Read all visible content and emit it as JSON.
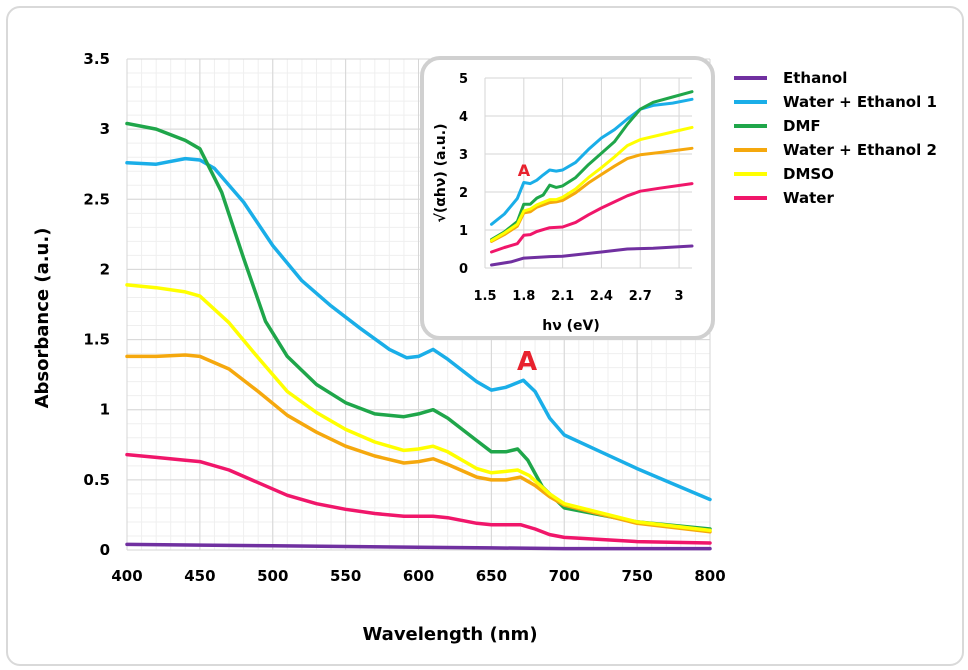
{
  "chart_data": [
    {
      "type": "line",
      "xlabel": "Wavelength (nm)",
      "ylabel": "Absorbance (a.u.)",
      "xlim": [
        400,
        800
      ],
      "ylim": [
        0,
        3.5
      ],
      "xticks": [
        "400",
        "450",
        "500",
        "550",
        "600",
        "650",
        "700",
        "750",
        "800"
      ],
      "yticks": [
        "0",
        "0.5",
        "1",
        "1.5",
        "2",
        "2.5",
        "3",
        "3.5"
      ],
      "grid": true,
      "legend_position": "right",
      "annotation": "A",
      "annotation_color": "#e8212d",
      "series": [
        {
          "name": "Ethanol",
          "color": "#7030a0",
          "points": [
            [
              400,
              0.04
            ],
            [
              450,
              0.035
            ],
            [
              500,
              0.03
            ],
            [
              550,
              0.025
            ],
            [
              600,
              0.02
            ],
            [
              650,
              0.015
            ],
            [
              700,
              0.01
            ],
            [
              750,
              0.01
            ],
            [
              800,
              0.01
            ]
          ]
        },
        {
          "name": "Water + Ethanol 1",
          "color": "#1aaee8",
          "points": [
            [
              400,
              2.76
            ],
            [
              420,
              2.75
            ],
            [
              440,
              2.79
            ],
            [
              450,
              2.78
            ],
            [
              460,
              2.72
            ],
            [
              480,
              2.48
            ],
            [
              500,
              2.17
            ],
            [
              520,
              1.92
            ],
            [
              540,
              1.74
            ],
            [
              560,
              1.58
            ],
            [
              580,
              1.43
            ],
            [
              592,
              1.37
            ],
            [
              600,
              1.38
            ],
            [
              610,
              1.43
            ],
            [
              620,
              1.36
            ],
            [
              640,
              1.2
            ],
            [
              650,
              1.14
            ],
            [
              660,
              1.16
            ],
            [
              672,
              1.21
            ],
            [
              680,
              1.13
            ],
            [
              690,
              0.94
            ],
            [
              700,
              0.82
            ],
            [
              725,
              0.7
            ],
            [
              750,
              0.58
            ],
            [
              775,
              0.47
            ],
            [
              800,
              0.36
            ]
          ]
        },
        {
          "name": "DMF",
          "color": "#1fa64a",
          "points": [
            [
              400,
              3.04
            ],
            [
              420,
              3.0
            ],
            [
              440,
              2.92
            ],
            [
              450,
              2.86
            ],
            [
              465,
              2.55
            ],
            [
              480,
              2.08
            ],
            [
              495,
              1.63
            ],
            [
              510,
              1.38
            ],
            [
              530,
              1.18
            ],
            [
              550,
              1.05
            ],
            [
              570,
              0.97
            ],
            [
              590,
              0.95
            ],
            [
              600,
              0.97
            ],
            [
              610,
              1.0
            ],
            [
              620,
              0.94
            ],
            [
              640,
              0.78
            ],
            [
              650,
              0.7
            ],
            [
              660,
              0.7
            ],
            [
              668,
              0.72
            ],
            [
              675,
              0.64
            ],
            [
              685,
              0.45
            ],
            [
              700,
              0.3
            ],
            [
              750,
              0.2
            ],
            [
              800,
              0.15
            ]
          ]
        },
        {
          "name": "Water + Ethanol 2",
          "color": "#f5a80d",
          "points": [
            [
              400,
              1.38
            ],
            [
              420,
              1.38
            ],
            [
              440,
              1.39
            ],
            [
              450,
              1.38
            ],
            [
              470,
              1.29
            ],
            [
              490,
              1.13
            ],
            [
              510,
              0.96
            ],
            [
              530,
              0.84
            ],
            [
              550,
              0.74
            ],
            [
              570,
              0.67
            ],
            [
              590,
              0.62
            ],
            [
              600,
              0.63
            ],
            [
              610,
              0.65
            ],
            [
              620,
              0.61
            ],
            [
              640,
              0.52
            ],
            [
              650,
              0.5
            ],
            [
              660,
              0.5
            ],
            [
              670,
              0.52
            ],
            [
              680,
              0.46
            ],
            [
              690,
              0.38
            ],
            [
              700,
              0.32
            ],
            [
              750,
              0.19
            ],
            [
              800,
              0.13
            ]
          ]
        },
        {
          "name": "DMSO",
          "color": "#ffff00",
          "points": [
            [
              400,
              1.89
            ],
            [
              420,
              1.87
            ],
            [
              440,
              1.84
            ],
            [
              450,
              1.81
            ],
            [
              470,
              1.62
            ],
            [
              490,
              1.37
            ],
            [
              510,
              1.13
            ],
            [
              530,
              0.98
            ],
            [
              550,
              0.86
            ],
            [
              570,
              0.77
            ],
            [
              590,
              0.71
            ],
            [
              600,
              0.72
            ],
            [
              610,
              0.74
            ],
            [
              620,
              0.7
            ],
            [
              640,
              0.58
            ],
            [
              650,
              0.55
            ],
            [
              660,
              0.56
            ],
            [
              668,
              0.57
            ],
            [
              676,
              0.53
            ],
            [
              690,
              0.4
            ],
            [
              700,
              0.33
            ],
            [
              750,
              0.2
            ],
            [
              800,
              0.14
            ]
          ]
        },
        {
          "name": "Water",
          "color": "#f0166a",
          "points": [
            [
              400,
              0.68
            ],
            [
              420,
              0.66
            ],
            [
              440,
              0.64
            ],
            [
              450,
              0.63
            ],
            [
              470,
              0.57
            ],
            [
              490,
              0.48
            ],
            [
              510,
              0.39
            ],
            [
              530,
              0.33
            ],
            [
              550,
              0.29
            ],
            [
              570,
              0.26
            ],
            [
              590,
              0.24
            ],
            [
              600,
              0.24
            ],
            [
              610,
              0.24
            ],
            [
              620,
              0.23
            ],
            [
              640,
              0.19
            ],
            [
              650,
              0.18
            ],
            [
              660,
              0.18
            ],
            [
              670,
              0.18
            ],
            [
              680,
              0.15
            ],
            [
              690,
              0.11
            ],
            [
              700,
              0.09
            ],
            [
              750,
              0.06
            ],
            [
              800,
              0.05
            ]
          ]
        }
      ]
    },
    {
      "type": "line",
      "xlabel": "hν (eV)",
      "ylabel": "√(αhν) (a.u.)",
      "xlim": [
        1.5,
        3.1
      ],
      "ylim": [
        0,
        5
      ],
      "xticks": [
        "1.5",
        "1.8",
        "2.1",
        "2.4",
        "2.7",
        "3"
      ],
      "yticks": [
        "0",
        "1",
        "2",
        "3",
        "4",
        "5"
      ],
      "annotation": "A",
      "annotation_color": "#e8212d",
      "series": [
        {
          "color": "#7030a0",
          "points": [
            [
              1.55,
              0.08
            ],
            [
              1.7,
              0.16
            ],
            [
              1.8,
              0.26
            ],
            [
              1.9,
              0.28
            ],
            [
              2.0,
              0.3
            ],
            [
              2.1,
              0.31
            ],
            [
              2.4,
              0.42
            ],
            [
              2.6,
              0.5
            ],
            [
              2.8,
              0.52
            ],
            [
              3.1,
              0.58
            ]
          ]
        },
        {
          "color": "#1aaee8",
          "points": [
            [
              1.55,
              1.15
            ],
            [
              1.65,
              1.42
            ],
            [
              1.75,
              1.83
            ],
            [
              1.8,
              2.25
            ],
            [
              1.85,
              2.22
            ],
            [
              1.9,
              2.31
            ],
            [
              1.95,
              2.45
            ],
            [
              2.0,
              2.58
            ],
            [
              2.05,
              2.55
            ],
            [
              2.1,
              2.58
            ],
            [
              2.2,
              2.78
            ],
            [
              2.3,
              3.12
            ],
            [
              2.4,
              3.42
            ],
            [
              2.5,
              3.64
            ],
            [
              2.6,
              3.92
            ],
            [
              2.7,
              4.18
            ],
            [
              2.8,
              4.28
            ],
            [
              2.95,
              4.34
            ],
            [
              3.1,
              4.44
            ]
          ]
        },
        {
          "color": "#1fa64a",
          "points": [
            [
              1.55,
              0.75
            ],
            [
              1.65,
              0.95
            ],
            [
              1.75,
              1.22
            ],
            [
              1.8,
              1.68
            ],
            [
              1.85,
              1.68
            ],
            [
              1.9,
              1.84
            ],
            [
              1.95,
              1.92
            ],
            [
              2.0,
              2.18
            ],
            [
              2.05,
              2.12
            ],
            [
              2.1,
              2.16
            ],
            [
              2.2,
              2.38
            ],
            [
              2.3,
              2.72
            ],
            [
              2.4,
              3.02
            ],
            [
              2.5,
              3.32
            ],
            [
              2.6,
              3.78
            ],
            [
              2.7,
              4.18
            ],
            [
              2.8,
              4.36
            ],
            [
              2.95,
              4.5
            ],
            [
              3.1,
              4.64
            ]
          ]
        },
        {
          "color": "#f5a80d",
          "points": [
            [
              1.55,
              0.7
            ],
            [
              1.65,
              0.88
            ],
            [
              1.75,
              1.1
            ],
            [
              1.8,
              1.45
            ],
            [
              1.85,
              1.48
            ],
            [
              1.9,
              1.6
            ],
            [
              2.0,
              1.72
            ],
            [
              2.05,
              1.74
            ],
            [
              2.1,
              1.78
            ],
            [
              2.2,
              1.98
            ],
            [
              2.3,
              2.24
            ],
            [
              2.4,
              2.46
            ],
            [
              2.5,
              2.68
            ],
            [
              2.6,
              2.88
            ],
            [
              2.7,
              2.98
            ],
            [
              2.85,
              3.04
            ],
            [
              3.1,
              3.15
            ]
          ]
        },
        {
          "color": "#ffff00",
          "points": [
            [
              1.55,
              0.72
            ],
            [
              1.65,
              0.92
            ],
            [
              1.75,
              1.15
            ],
            [
              1.8,
              1.5
            ],
            [
              1.85,
              1.55
            ],
            [
              1.9,
              1.66
            ],
            [
              2.0,
              1.8
            ],
            [
              2.05,
              1.8
            ],
            [
              2.1,
              1.86
            ],
            [
              2.2,
              2.08
            ],
            [
              2.3,
              2.38
            ],
            [
              2.4,
              2.64
            ],
            [
              2.5,
              2.92
            ],
            [
              2.6,
              3.22
            ],
            [
              2.7,
              3.38
            ],
            [
              2.85,
              3.5
            ],
            [
              3.1,
              3.7
            ]
          ]
        },
        {
          "color": "#f0166a",
          "points": [
            [
              1.55,
              0.42
            ],
            [
              1.65,
              0.54
            ],
            [
              1.75,
              0.64
            ],
            [
              1.8,
              0.86
            ],
            [
              1.85,
              0.88
            ],
            [
              1.9,
              0.96
            ],
            [
              2.0,
              1.06
            ],
            [
              2.1,
              1.08
            ],
            [
              2.2,
              1.2
            ],
            [
              2.3,
              1.4
            ],
            [
              2.4,
              1.58
            ],
            [
              2.5,
              1.74
            ],
            [
              2.6,
              1.9
            ],
            [
              2.7,
              2.02
            ],
            [
              2.85,
              2.1
            ],
            [
              3.1,
              2.22
            ]
          ]
        }
      ]
    }
  ]
}
